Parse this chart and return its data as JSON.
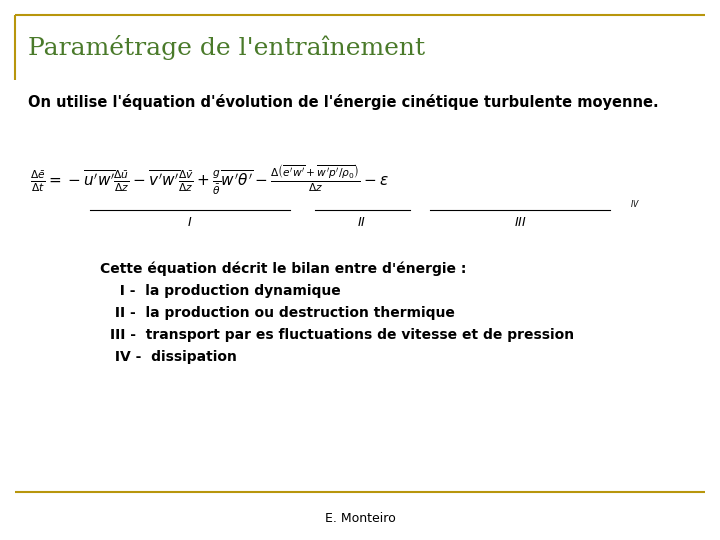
{
  "title": "Paramétrage de l'entraînement",
  "title_color": "#4a7a2a",
  "title_fontsize": 18,
  "border_color": "#b8960c",
  "bg_color": "#ffffff",
  "intro_text": "On utilise l'équation d'évolution de l'énergie cinétique turbulente moyenne.",
  "intro_fontsize": 10.5,
  "eq_fontsize": 11,
  "bullet_title": "Cette équation décrit le bilan entre d'énergie :",
  "bullets": [
    "  I -  la production dynamique",
    " II -  la production ou destruction thermique",
    "III -  transport par es fluctuations de vitesse et de pression",
    " IV -  dissipation"
  ],
  "bullet_fontsize": 10,
  "footer": "E. Monteiro",
  "footer_fontsize": 9,
  "text_color": "#000000"
}
